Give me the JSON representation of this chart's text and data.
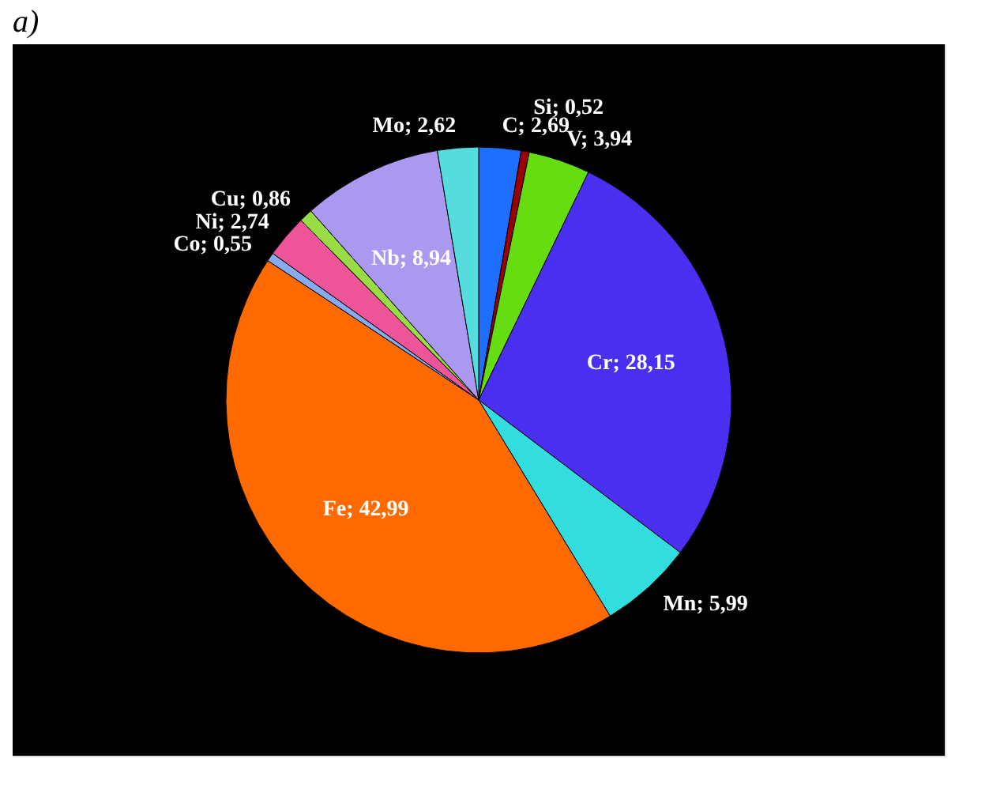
{
  "chart_data": {
    "type": "pie",
    "title": "a)",
    "categories": [
      "C",
      "Si",
      "V",
      "Cr",
      "Mn",
      "Fe",
      "Co",
      "Ni",
      "Cu",
      "Nb",
      "Mo"
    ],
    "values": [
      2.69,
      0.52,
      3.94,
      28.15,
      5.99,
      42.99,
      0.55,
      2.74,
      0.86,
      8.94,
      2.62
    ],
    "colors": [
      "#1e6fff",
      "#990000",
      "#66dd11",
      "#4a2ff0",
      "#33dddd",
      "#ff6a00",
      "#88aaee",
      "#ee5599",
      "#99dd44",
      "#aa99ee",
      "#55dddd"
    ],
    "value_labels": [
      "2,69",
      "0,52",
      "3,94",
      "28,15",
      "5,99",
      "42,99",
      "0,55",
      "2,74",
      "0,86",
      "8,94",
      "2,62"
    ]
  }
}
